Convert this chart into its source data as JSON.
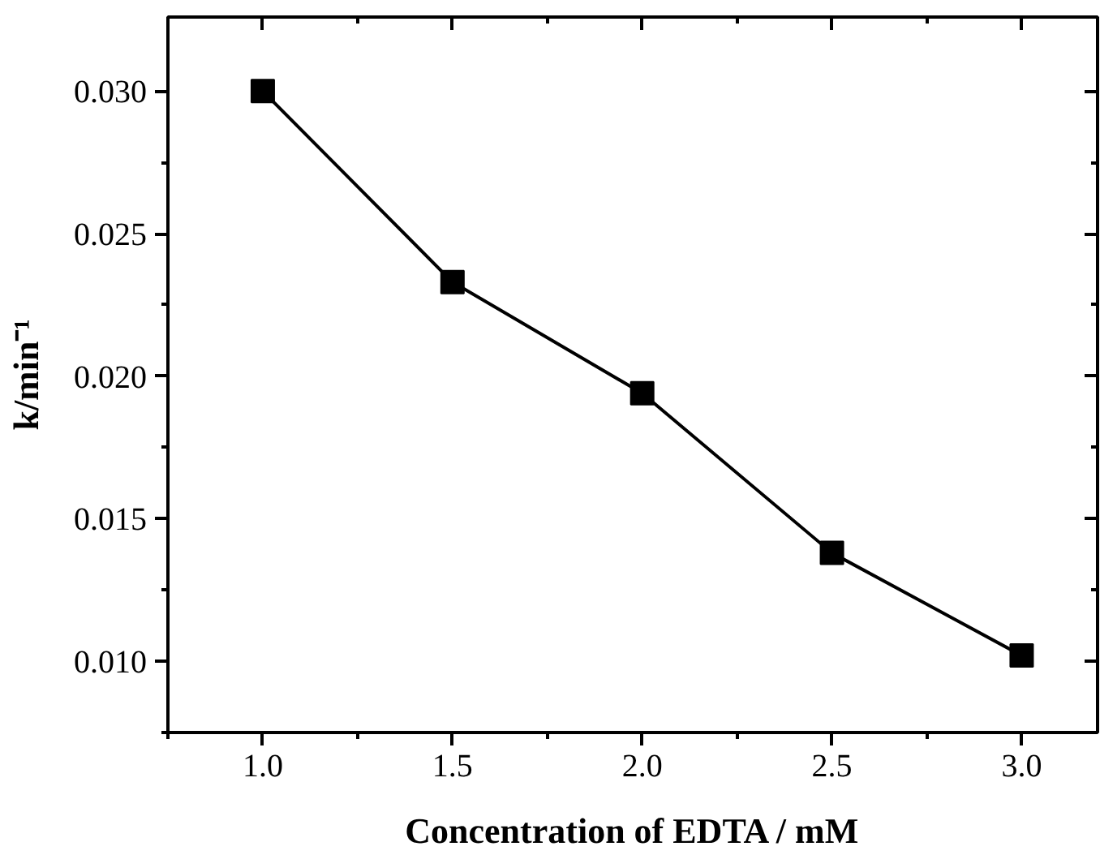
{
  "chart_data": {
    "type": "line",
    "xlabel": "Concentration of EDTA / mM",
    "ylabel": "k/min⁻¹",
    "x": [
      1.0,
      1.5,
      2.0,
      2.5,
      3.0
    ],
    "series": [
      {
        "color": "#000000",
        "values": [
          0.03,
          0.0233,
          0.0194,
          0.0138,
          0.0102
        ]
      }
    ],
    "marker": "square",
    "line_style": "solid",
    "grid": false,
    "xlim": [
      0.75,
      3.2
    ],
    "ylim": [
      0.0075,
      0.0326
    ],
    "xticks": [
      {
        "value": 0.75,
        "label": null
      },
      {
        "value": 1.0,
        "label": "1.0"
      },
      {
        "value": 1.25,
        "label": null
      },
      {
        "value": 1.5,
        "label": "1.5"
      },
      {
        "value": 1.75,
        "label": null
      },
      {
        "value": 2.0,
        "label": "2.0"
      },
      {
        "value": 2.25,
        "label": null
      },
      {
        "value": 2.5,
        "label": "2.5"
      },
      {
        "value": 2.75,
        "label": null
      },
      {
        "value": 3.0,
        "label": "3.0"
      }
    ],
    "yticks": [
      {
        "value": 0.0075,
        "label": null
      },
      {
        "value": 0.01,
        "label": "0.010"
      },
      {
        "value": 0.0125,
        "label": null
      },
      {
        "value": 0.015,
        "label": "0.015"
      },
      {
        "value": 0.0175,
        "label": null
      },
      {
        "value": 0.02,
        "label": "0.020"
      },
      {
        "value": 0.0225,
        "label": null
      },
      {
        "value": 0.025,
        "label": "0.025"
      },
      {
        "value": 0.0275,
        "label": null
      },
      {
        "value": 0.03,
        "label": "0.030"
      }
    ]
  }
}
